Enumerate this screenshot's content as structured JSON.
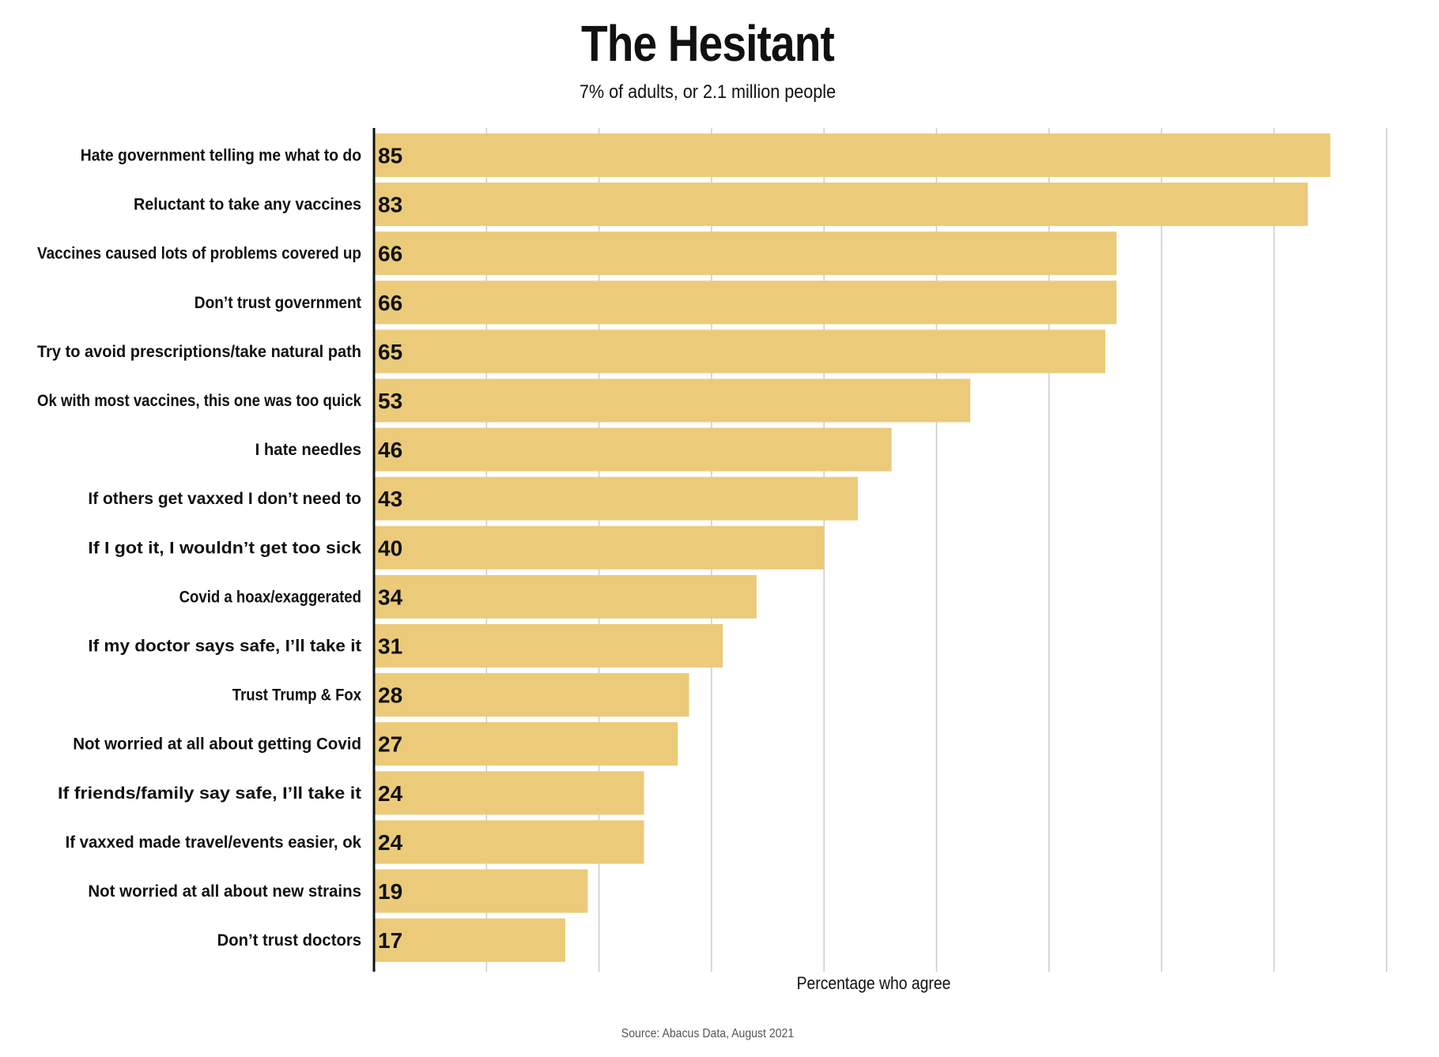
{
  "chart_data": {
    "type": "bar",
    "orientation": "horizontal",
    "title": "The Hesitant",
    "subtitle": "7% of adults, or 2.1 million people",
    "xlabel": "Percentage who agree",
    "ylabel": "",
    "source": "Source: Abacus Data, August 2021",
    "xlim": [
      0,
      90
    ],
    "grid": true,
    "gridlines": [
      0,
      10,
      20,
      30,
      40,
      50,
      60,
      70,
      80,
      90
    ],
    "categories": [
      "Hate government telling me what to do",
      "Reluctant to take any vaccines",
      "Vaccines caused lots of problems covered up",
      "Don’t trust government",
      "Try to avoid prescriptions/take natural path",
      "Ok with most vaccines, this one was too quick",
      "I hate needles",
      "If others get vaxxed I don’t need to",
      "If I got it, I wouldn’t get too sick",
      "Covid a hoax/exaggerated",
      "If my doctor says safe, I’ll take it",
      "Trust Trump & Fox",
      "Not worried at all about getting Covid",
      "If friends/family say safe, I’ll take it",
      "If vaxxed made travel/events easier, ok",
      "Not worried at all about new strains",
      "Don’t trust doctors"
    ],
    "values": [
      85,
      83,
      66,
      66,
      65,
      53,
      46,
      43,
      40,
      34,
      31,
      28,
      27,
      24,
      24,
      19,
      17
    ],
    "bar_color": "#EBCB7A"
  }
}
